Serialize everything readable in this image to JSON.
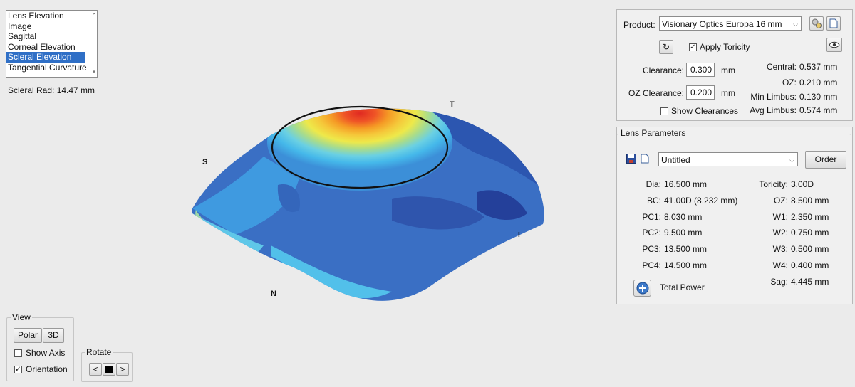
{
  "map_list": {
    "items": [
      "Lens Elevation",
      "Image",
      "Sagittal",
      "Corneal Elevation",
      "Scleral Elevation",
      "Tangential Curvature"
    ],
    "selected_index": 4
  },
  "scleral_rad": "Scleral Rad: 14.47 mm",
  "orientation_labels": {
    "s": "S",
    "t": "T",
    "n": "N",
    "i": "I"
  },
  "product": {
    "label": "Product:",
    "value": "Visionary Optics Europa 16 mm",
    "apply_toricity_label": "Apply Toricity",
    "apply_toricity_checked": true,
    "clearance_label": "Clearance:",
    "clearance_value": "0.300",
    "clearance_unit": "mm",
    "oz_clearance_label": "OZ Clearance:",
    "oz_clearance_value": "0.200",
    "oz_clearance_unit": "mm",
    "show_clearances_label": "Show Clearances",
    "show_clearances_checked": false,
    "stats": [
      {
        "label": "Central:",
        "value": "0.537 mm"
      },
      {
        "label": "OZ:",
        "value": "0.210 mm"
      },
      {
        "label": "Min Limbus:",
        "value": "0.130 mm"
      },
      {
        "label": "Avg Limbus:",
        "value": "0.574 mm"
      }
    ]
  },
  "lens_parameters": {
    "title": "Lens Parameters",
    "name_value": "Untitled",
    "order_label": "Order",
    "left_params": [
      {
        "label": "Dia:",
        "value": "16.500 mm"
      },
      {
        "label": "BC:",
        "value": "41.00D (8.232 mm)"
      },
      {
        "label": "PC1:",
        "value": "8.030 mm"
      },
      {
        "label": "PC2:",
        "value": "9.500 mm"
      },
      {
        "label": "PC3:",
        "value": "13.500 mm"
      },
      {
        "label": "PC4:",
        "value": "14.500 mm"
      }
    ],
    "right_params": [
      {
        "label": "Toricity:",
        "value": "3.00D"
      },
      {
        "label": "OZ:",
        "value": "8.500 mm"
      },
      {
        "label": "W1:",
        "value": "2.350 mm"
      },
      {
        "label": "W2:",
        "value": "0.750 mm"
      },
      {
        "label": "W3:",
        "value": "0.500 mm"
      },
      {
        "label": "W4:",
        "value": "0.400 mm"
      }
    ],
    "total_power_label": "Total Power",
    "sag_label": "Sag:",
    "sag_value": "4.445 mm"
  },
  "view": {
    "title": "View",
    "polar_label": "Polar",
    "three_d_label": "3D",
    "show_axis_label": "Show Axis",
    "show_axis_checked": false,
    "orientation_label": "Orientation",
    "orientation_checked": true
  },
  "rotate": {
    "title": "Rotate",
    "left_label": "<",
    "right_label": ">"
  },
  "colors": {
    "selection": "#2f6fc6",
    "map_blue_dark": "#2a4fa8",
    "map_blue": "#3a72c6",
    "map_cyan": "#45c2ea",
    "map_yellow": "#f2e43a",
    "map_orange": "#f59a25",
    "map_red": "#e5352a"
  }
}
